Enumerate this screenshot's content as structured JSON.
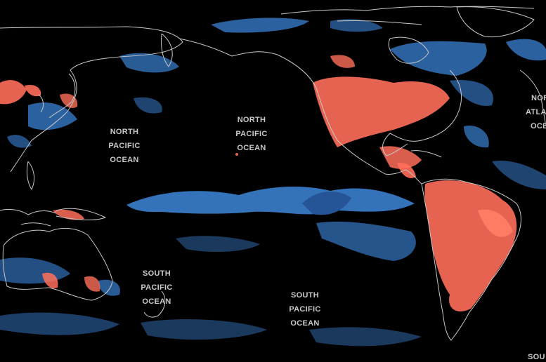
{
  "map": {
    "colors": {
      "background": "#000000",
      "coastline": "#c8c8c8",
      "warm_anomaly": "#ff6e5a",
      "cool_anomaly": "#3a7fd0",
      "cool_deep": "#2a5fa8"
    },
    "labels": {
      "np_west": [
        "NORTH",
        "PACIFIC",
        "OCEAN"
      ],
      "np_east": [
        "NORTH",
        "PACIFIC",
        "OCEAN"
      ],
      "sp_west": [
        "SOUTH",
        "PACIFIC",
        "OCEAN"
      ],
      "sp_east": [
        "SOUTH",
        "PACIFIC",
        "OCEAN"
      ],
      "na_cut": [
        "NOR",
        "ATLA",
        "OCE"
      ],
      "sa_cut": [
        "SOU"
      ]
    }
  }
}
